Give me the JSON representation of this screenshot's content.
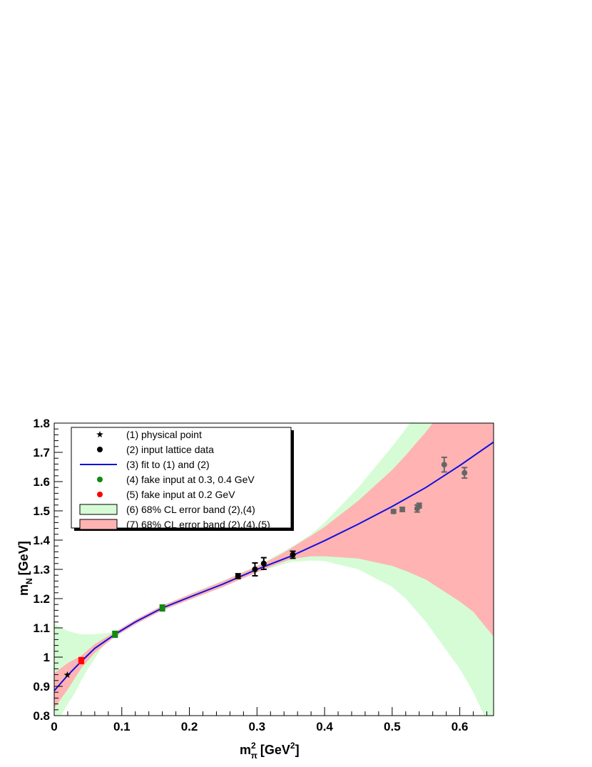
{
  "chart_data": {
    "type": "scatter",
    "xlabel": {
      "base": "m",
      "sup": "2",
      "sub": "π",
      "unit": "[GeV",
      "unit_sup": "2",
      "unit_close": "]"
    },
    "ylabel": {
      "base": "m",
      "sub": "N",
      "unit": "[GeV]"
    },
    "xlim": [
      0,
      0.65
    ],
    "ylim": [
      0.8,
      1.8
    ],
    "x_ticks": [
      "0",
      "0.1",
      "0.2",
      "0.3",
      "0.4",
      "0.5",
      "0.6"
    ],
    "y_ticks": [
      "0.8",
      "0.9",
      "1",
      "1.1",
      "1.2",
      "1.3",
      "1.4",
      "1.5",
      "1.6",
      "1.7",
      "1.8"
    ],
    "grid": false,
    "legend_position": "top-left",
    "legend": [
      {
        "label": "(1)  physical point",
        "marker": "star",
        "color": "#000000"
      },
      {
        "label": "(2)  input lattice data",
        "marker": "dot",
        "color": "#000000"
      },
      {
        "label": "(3)  fit to (1) and (2)",
        "marker": "line",
        "color": "#1010e0"
      },
      {
        "label": "(4)  fake input at 0.3, 0.4 GeV",
        "marker": "dot",
        "color": "#108a10"
      },
      {
        "label": "(5)  fake input at 0.2 GeV",
        "marker": "dot",
        "color": "#ff0000"
      },
      {
        "label": "(6)  68% CL error band (2),(4)",
        "marker": "box",
        "color": "#d6fcd6"
      },
      {
        "label": "(7)  68% CL error band (2),(4),(5)",
        "marker": "box",
        "color": "#ffb3b3"
      }
    ],
    "physical_point": {
      "x": 0.0195,
      "y": 0.939,
      "color": "#000000"
    },
    "lattice_data": {
      "color": "#000000",
      "points": [
        {
          "x": 0.272,
          "y": 1.277,
          "err": 0.008
        },
        {
          "x": 0.297,
          "y": 1.3,
          "err": 0.022
        },
        {
          "x": 0.31,
          "y": 1.32,
          "err": 0.02
        },
        {
          "x": 0.353,
          "y": 1.35,
          "err": 0.012
        }
      ]
    },
    "excluded_lattice_data": {
      "color": "#666666",
      "points": [
        {
          "x": 0.502,
          "y": 1.498,
          "err": 0.006
        },
        {
          "x": 0.515,
          "y": 1.505,
          "err": 0.007
        },
        {
          "x": 0.537,
          "y": 1.508,
          "err": 0.012
        },
        {
          "x": 0.54,
          "y": 1.518,
          "err": 0.008
        },
        {
          "x": 0.577,
          "y": 1.658,
          "err": 0.025
        },
        {
          "x": 0.607,
          "y": 1.63,
          "err": 0.018
        }
      ]
    },
    "fake_input_green": {
      "color": "#108a10",
      "points": [
        {
          "x": 0.09,
          "y": 1.078,
          "err": 0.01
        },
        {
          "x": 0.16,
          "y": 1.168,
          "err": 0.01
        }
      ]
    },
    "fake_input_red": {
      "color": "#ff0000",
      "points": [
        {
          "x": 0.04,
          "y": 0.988,
          "err": 0.01
        }
      ]
    },
    "fit_curve": {
      "color": "#1010e0",
      "x": [
        0,
        0.02,
        0.04,
        0.06,
        0.09,
        0.12,
        0.16,
        0.2,
        0.25,
        0.3,
        0.35,
        0.4,
        0.45,
        0.5,
        0.55,
        0.6,
        0.65
      ],
      "y": [
        0.885,
        0.938,
        0.985,
        1.03,
        1.078,
        1.12,
        1.168,
        1.205,
        1.25,
        1.3,
        1.345,
        1.398,
        1.455,
        1.515,
        1.58,
        1.655,
        1.735
      ]
    },
    "band_green": {
      "color": "#d6fcd6",
      "x": [
        0,
        0.01,
        0.02,
        0.03,
        0.04,
        0.05,
        0.06,
        0.07,
        0.08,
        0.09,
        0.11,
        0.13,
        0.16,
        0.2,
        0.25,
        0.3,
        0.35,
        0.38,
        0.4,
        0.45,
        0.5,
        0.52,
        0.55,
        0.6,
        0.62,
        0.65
      ],
      "upper": [
        1.115,
        1.1,
        1.09,
        1.083,
        1.078,
        1.078,
        1.079,
        1.08,
        1.083,
        1.087,
        1.113,
        1.14,
        1.176,
        1.215,
        1.262,
        1.312,
        1.375,
        1.42,
        1.46,
        1.58,
        1.72,
        1.78,
        1.88,
        2.05,
        2.12,
        2.2
      ],
      "lower": [
        0.78,
        0.8,
        0.84,
        0.875,
        0.92,
        0.96,
        0.995,
        1.03,
        1.055,
        1.072,
        1.102,
        1.13,
        1.162,
        1.195,
        1.24,
        1.29,
        1.325,
        1.33,
        1.328,
        1.3,
        1.24,
        1.2,
        1.12,
        0.96,
        0.88,
        0.73
      ]
    },
    "band_red": {
      "color": "#ffb3b3",
      "x": [
        0,
        0.02,
        0.04,
        0.06,
        0.09,
        0.12,
        0.16,
        0.2,
        0.25,
        0.3,
        0.33,
        0.35,
        0.38,
        0.4,
        0.45,
        0.5,
        0.52,
        0.55,
        0.6,
        0.62,
        0.65
      ],
      "upper": [
        0.945,
        0.98,
        1.005,
        1.045,
        1.086,
        1.128,
        1.176,
        1.214,
        1.26,
        1.31,
        1.345,
        1.372,
        1.415,
        1.445,
        1.535,
        1.64,
        1.69,
        1.77,
        1.92,
        1.99,
        2.1
      ],
      "lower": [
        0.825,
        0.89,
        0.962,
        1.015,
        1.07,
        1.112,
        1.16,
        1.196,
        1.24,
        1.29,
        1.318,
        1.335,
        1.345,
        1.345,
        1.337,
        1.312,
        1.295,
        1.265,
        1.19,
        1.155,
        1.07
      ]
    }
  }
}
